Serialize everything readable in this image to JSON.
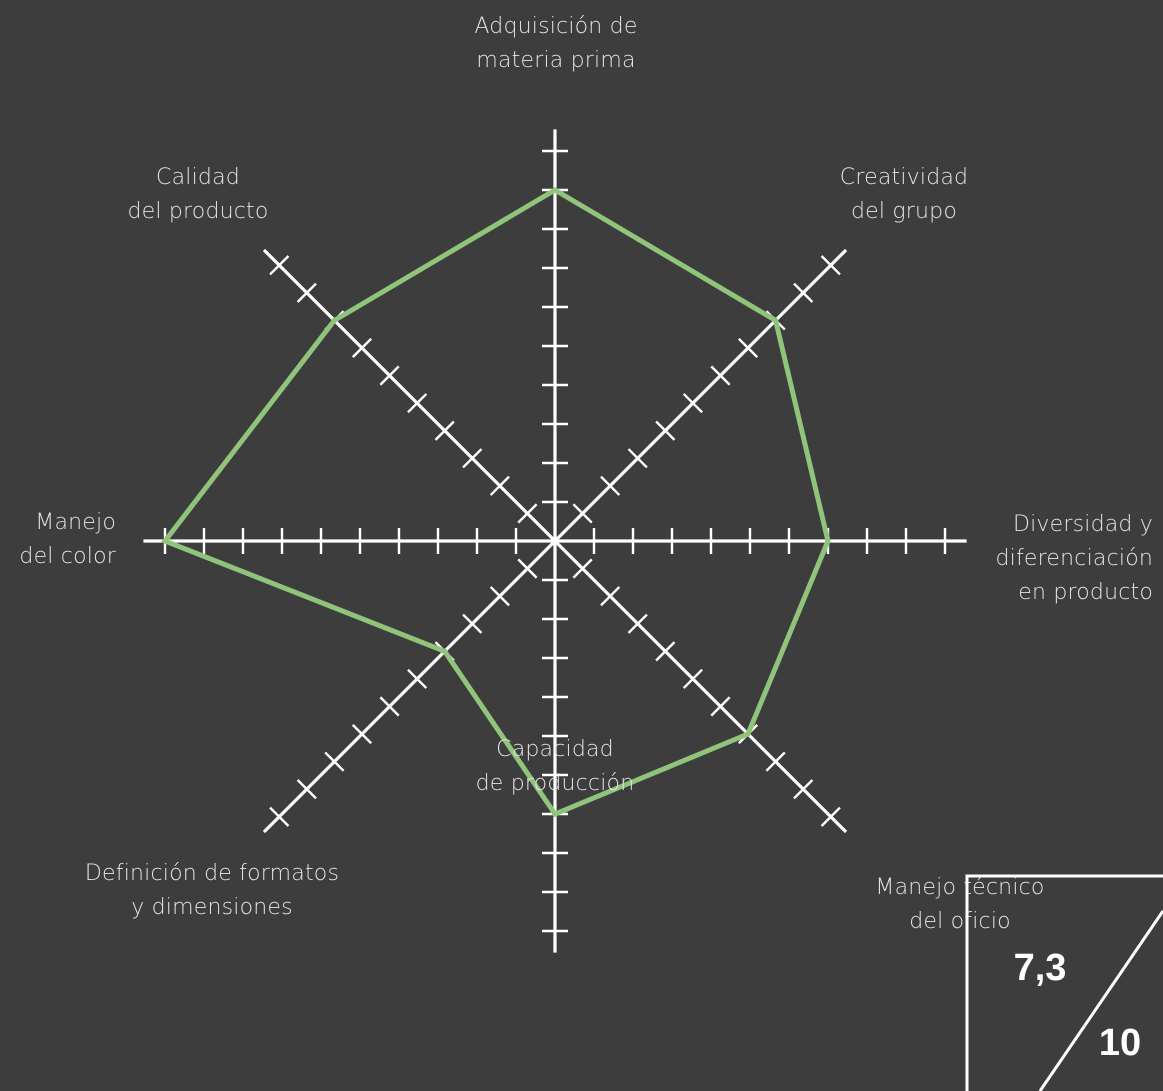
{
  "chart_data": {
    "type": "radar",
    "axes": [
      {
        "lines": [
          "Adquisición de",
          "materia prima"
        ]
      },
      {
        "lines": [
          "Creatividad",
          "del grupo"
        ]
      },
      {
        "lines": [
          "Diversidad y",
          "diferenciación",
          "en producto"
        ]
      },
      {
        "lines": [
          "Manejo técnico",
          "del oficio"
        ]
      },
      {
        "lines": [
          "Capacidad",
          "de producción"
        ]
      },
      {
        "lines": [
          "Definición de formatos",
          "y dimensiones"
        ]
      },
      {
        "lines": [
          "Manejo",
          "del color"
        ]
      },
      {
        "lines": [
          "Calidad",
          "del producto"
        ]
      }
    ],
    "categories": [
      "Adquisición de materia prima",
      "Creatividad del grupo",
      "Diversidad y diferenciación en producto",
      "Manejo técnico del oficio",
      "Capacidad de producción",
      "Definición de formatos y dimensiones",
      "Manejo del color",
      "Calidad del producto"
    ],
    "series": [
      {
        "values": [
          9,
          8,
          7,
          7,
          7,
          4,
          10,
          8
        ]
      }
    ],
    "scale": {
      "min": 0,
      "max": 10,
      "ticks": 10
    },
    "colors": {
      "series": "#8fc47a",
      "axes": "#ffffff",
      "background": "#3d3d3d"
    }
  },
  "score": {
    "value": "7,3",
    "max": "10"
  }
}
